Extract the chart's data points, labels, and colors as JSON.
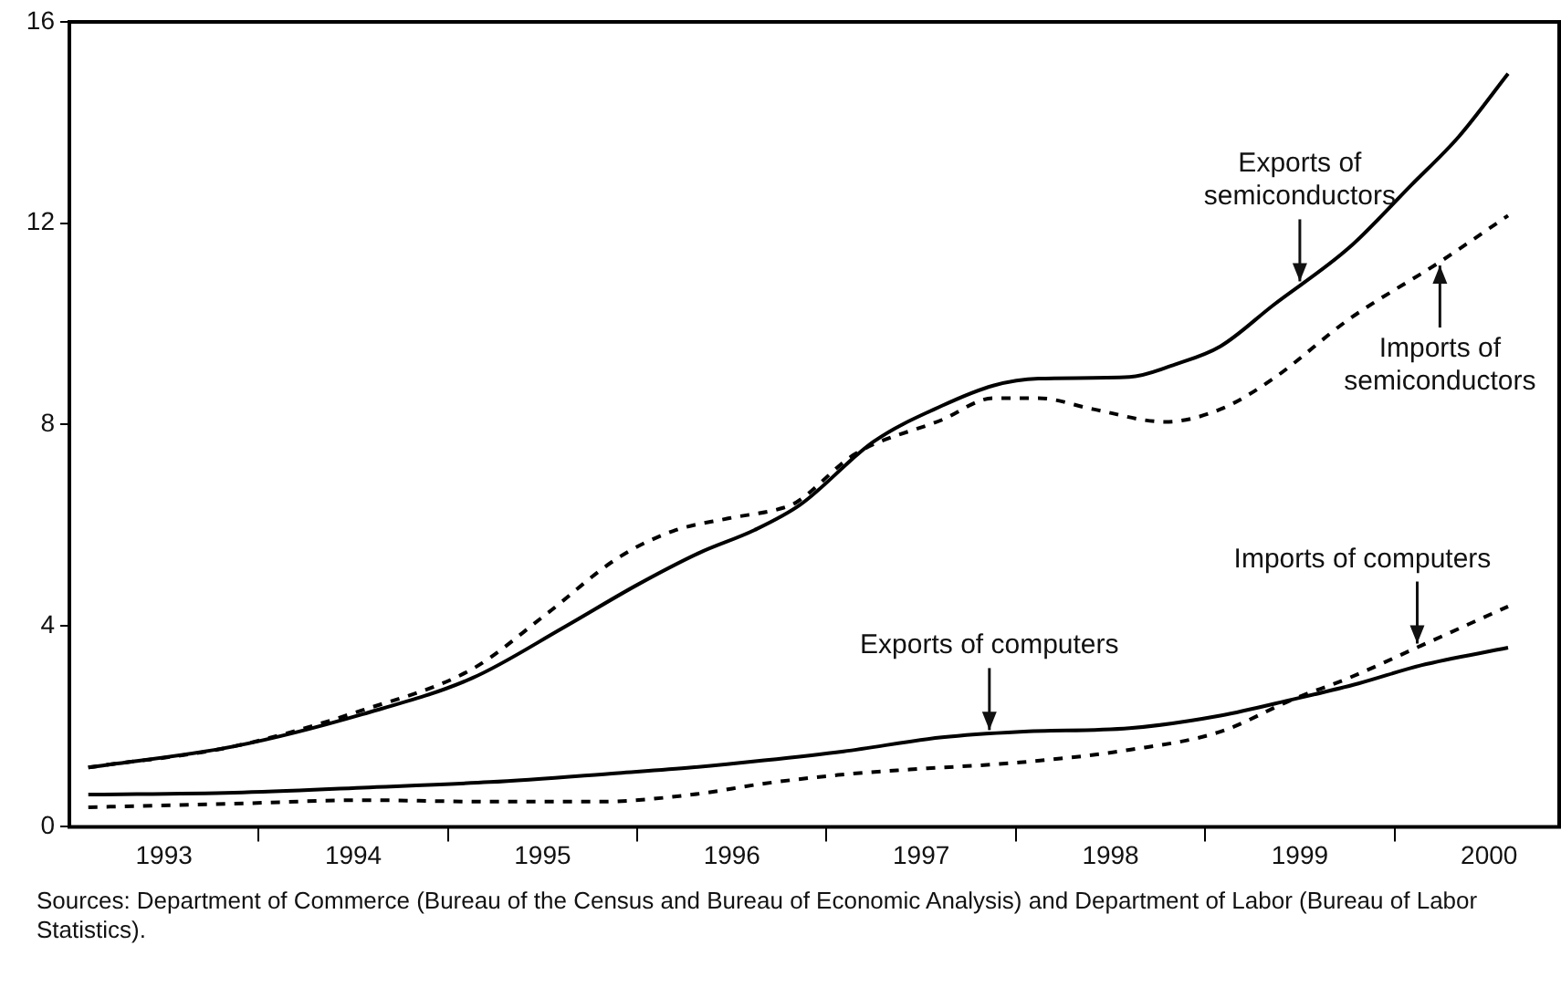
{
  "chart_data": {
    "type": "line",
    "legend": false,
    "grid": false,
    "marker": "none",
    "xlim": [
      1993,
      2000.87
    ],
    "xticks": [
      {
        "value": 1993.5,
        "label": "1993"
      },
      {
        "value": 1994,
        "label": null
      },
      {
        "value": 1994.5,
        "label": "1994"
      },
      {
        "value": 1995,
        "label": null
      },
      {
        "value": 1995.5,
        "label": "1995"
      },
      {
        "value": 1996,
        "label": null
      },
      {
        "value": 1996.5,
        "label": "1996"
      },
      {
        "value": 1997,
        "label": null
      },
      {
        "value": 1997.5,
        "label": "1997"
      },
      {
        "value": 1998,
        "label": null
      },
      {
        "value": 1998.5,
        "label": "1998"
      },
      {
        "value": 1999,
        "label": null
      },
      {
        "value": 1999.5,
        "label": "1999"
      },
      {
        "value": 2000,
        "label": null
      },
      {
        "value": 2000.5,
        "label": "2000"
      }
    ],
    "ylim": [
      0,
      16
    ],
    "yticks": [
      0,
      4,
      8,
      12,
      16
    ],
    "series": [
      {
        "color": "#000000",
        "line_style": "solid",
        "x": [
          1993.1,
          1993.87,
          1994.55,
          1995.13,
          1995.61,
          1996.0,
          1996.33,
          1996.62,
          1996.86,
          1997.25,
          1997.61,
          1997.88,
          1998.12,
          1998.6,
          1998.84,
          1999.08,
          1999.36,
          1999.76,
          2000.09,
          2000.34,
          2000.6
        ],
        "values": [
          1.18,
          1.6,
          2.24,
          2.96,
          3.96,
          4.81,
          5.45,
          5.9,
          6.4,
          7.66,
          8.37,
          8.77,
          8.91,
          8.94,
          9.19,
          9.55,
          10.37,
          11.51,
          12.76,
          13.72,
          14.97
        ]
      },
      {
        "color": "#000000",
        "line_style": "dashed",
        "x": [
          1993.1,
          1993.87,
          1994.55,
          1995.13,
          1995.51,
          1995.9,
          1996.19,
          1996.48,
          1996.77,
          1996.84,
          1997.15,
          1997.61,
          1997.88,
          1998.12,
          1998.41,
          1998.79,
          1999.08,
          1999.36,
          1999.76,
          2000.24,
          2000.6
        ],
        "values": [
          1.18,
          1.6,
          2.32,
          3.14,
          4.2,
          5.35,
          5.88,
          6.13,
          6.34,
          6.45,
          7.41,
          8.09,
          8.52,
          8.52,
          8.3,
          8.05,
          8.3,
          8.91,
          10.09,
          11.23,
          12.15
        ]
      },
      {
        "color": "#000000",
        "line_style": "solid",
        "x": [
          1993.1,
          1993.87,
          1994.55,
          1995.22,
          1995.9,
          1996.29,
          1996.67,
          1997.09,
          1997.61,
          1998.02,
          1998.6,
          1999.08,
          1999.46,
          1999.81,
          2000.14,
          2000.6
        ],
        "values": [
          0.64,
          0.68,
          0.78,
          0.89,
          1.07,
          1.18,
          1.32,
          1.5,
          1.78,
          1.89,
          1.96,
          2.21,
          2.53,
          2.85,
          3.21,
          3.56
        ]
      },
      {
        "color": "#000000",
        "line_style": "dashed",
        "x": [
          1993.1,
          1993.87,
          1994.55,
          1995.22,
          1995.8,
          1996.29,
          1996.67,
          1997.06,
          1997.44,
          1998.02,
          1998.6,
          1999.08,
          1999.46,
          1999.76,
          2000.14,
          2000.6
        ],
        "values": [
          0.39,
          0.46,
          0.53,
          0.5,
          0.5,
          0.64,
          0.86,
          1.03,
          1.14,
          1.28,
          1.53,
          1.89,
          2.53,
          2.96,
          3.6,
          4.38
        ]
      }
    ],
    "annotations": [
      {
        "text": "Exports of\nsemiconductors",
        "x": 1999.5,
        "y": 10.77
      },
      {
        "text": "Imports of\nsemiconductors",
        "x": 2000.24,
        "y": 11.23
      },
      {
        "text": "Exports of computers",
        "x": 1997.86,
        "y": 1.85
      },
      {
        "text": "Imports of computers",
        "x": 2000.12,
        "y": 3.57
      },
      "Sources: Department of Commerce (Bureau of the Census and Bureau of Economic Analysis) and Department of Labor (Bureau of Labor Statistics)."
    ]
  }
}
